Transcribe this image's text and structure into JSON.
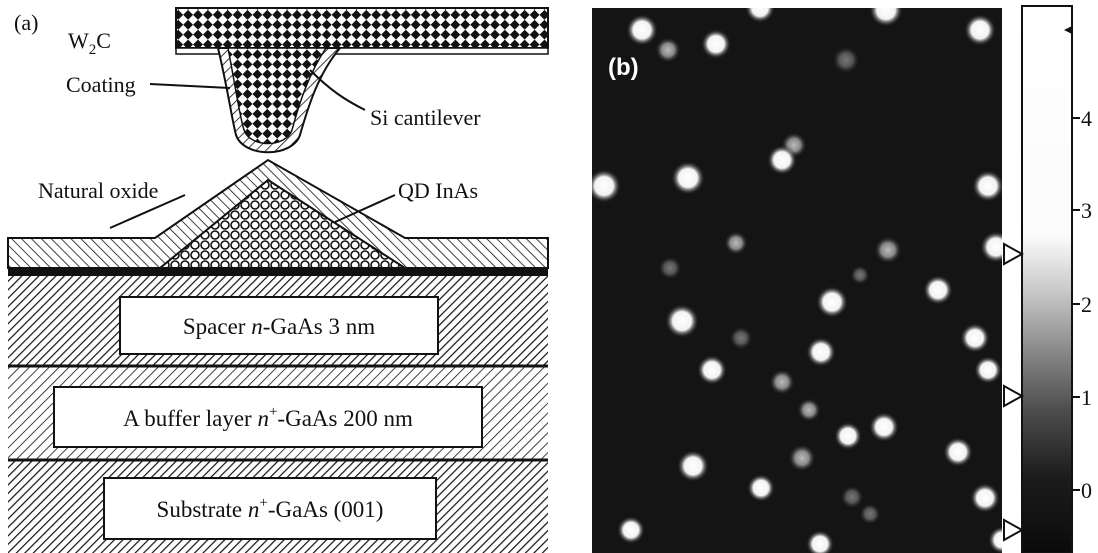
{
  "panel_a": {
    "label": "(a)",
    "w2c_main": "W",
    "w2c_sub": "2",
    "w2c_tail": "C",
    "coating": "Coating",
    "si_cantilever": "Si cantilever",
    "natural_oxide": "Natural oxide",
    "qd_inas": "QD InAs",
    "spacer": {
      "pre": "Spacer ",
      "italic": "n",
      "post": "-GaAs 3 nm"
    },
    "buffer": {
      "pre": "A buffer layer ",
      "italic": "n",
      "sup": "+",
      "post": "-GaAs 200 nm"
    },
    "substrate": {
      "pre": "Substrate ",
      "italic": "n",
      "sup": "+",
      "post": "-GaAs (001)"
    }
  },
  "panel_b": {
    "label": "(b)",
    "colorbar_ticks": [
      "4",
      "3",
      "2",
      "1",
      "0"
    ]
  }
}
